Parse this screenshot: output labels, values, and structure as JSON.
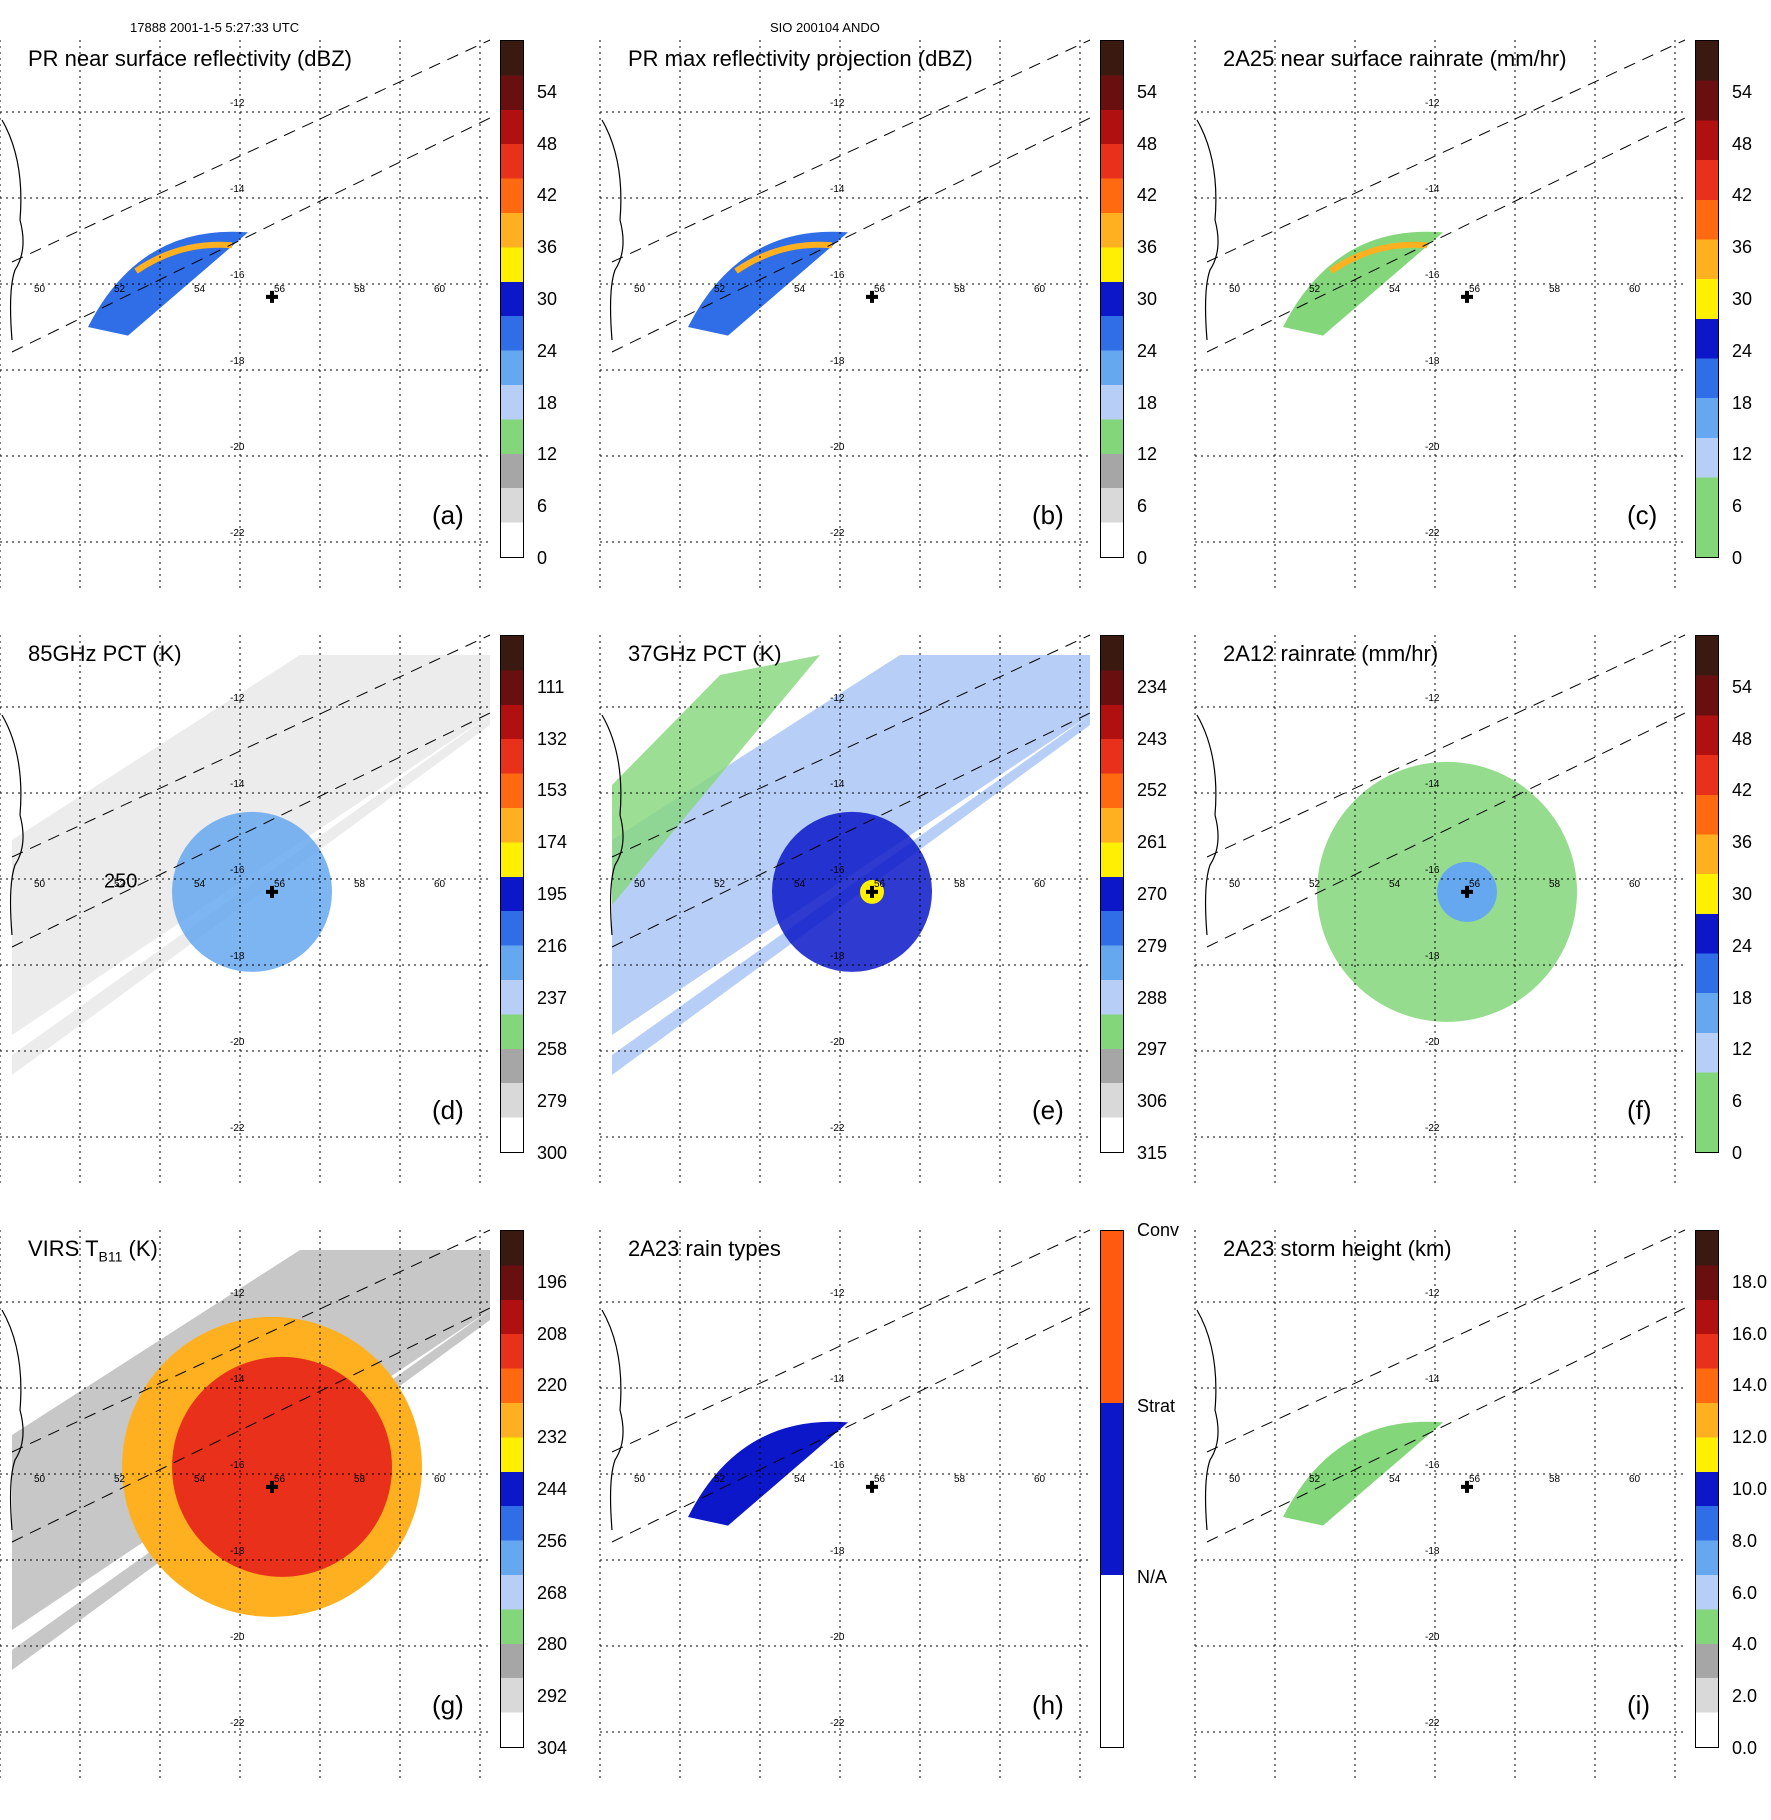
{
  "header": {
    "left": "17888 2001-1-5 5:27:33 UTC",
    "center": "SIO 200104 ANDO"
  },
  "lon_ticks": [
    "50",
    "52",
    "54",
    "56",
    "58",
    "60"
  ],
  "lat_ticks": [
    "-12",
    "-14",
    "-16",
    "-18",
    "-20",
    "-22"
  ],
  "colors": {
    "ring_contour": "#000000",
    "swath_edge": "#000000"
  },
  "panels": [
    {
      "id": "a",
      "title": "PR near surface reflectivity (dBZ)",
      "label": "(a)",
      "type": "pr",
      "colorbar": [
        "#ffffff",
        "#d9d9d9",
        "#a6a6a6",
        "#84d67a",
        "#b7cff7",
        "#66a8f0",
        "#2f6ee6",
        "#0b17c8",
        "#ffef00",
        "#ffb020",
        "#ff6a10",
        "#e8301a",
        "#b01010",
        "#6a0f0f",
        "#3a1a10"
      ],
      "cb_labels": [
        "0",
        "6",
        "12",
        "18",
        "24",
        "30",
        "36",
        "42",
        "48",
        "54"
      ]
    },
    {
      "id": "b",
      "title": "PR max reflectivity projection (dBZ)",
      "label": "(b)",
      "type": "pr",
      "colorbar": [
        "#ffffff",
        "#d9d9d9",
        "#a6a6a6",
        "#84d67a",
        "#b7cff7",
        "#66a8f0",
        "#2f6ee6",
        "#0b17c8",
        "#ffef00",
        "#ffb020",
        "#ff6a10",
        "#e8301a",
        "#b01010",
        "#6a0f0f",
        "#3a1a10"
      ],
      "cb_labels": [
        "0",
        "6",
        "12",
        "18",
        "24",
        "30",
        "36",
        "42",
        "48",
        "54"
      ]
    },
    {
      "id": "c",
      "title": "2A25 near surface rainrate (mm/hr)",
      "label": "(c)",
      "type": "pr",
      "colorbar": [
        "#84d67a",
        "#84d67a",
        "#b7cff7",
        "#66a8f0",
        "#2f6ee6",
        "#0b17c8",
        "#ffef00",
        "#ffb020",
        "#ff6a10",
        "#e8301a",
        "#b01010",
        "#6a0f0f",
        "#3a1a10"
      ],
      "cb_labels": [
        "0",
        "6",
        "12",
        "18",
        "24",
        "30",
        "36",
        "42",
        "48",
        "54"
      ]
    },
    {
      "id": "d",
      "title": "85GHz PCT (K)",
      "label": "(d)",
      "type": "wide",
      "contour": "250",
      "colorbar": [
        "#ffffff",
        "#d9d9d9",
        "#a6a6a6",
        "#84d67a",
        "#b7cff7",
        "#66a8f0",
        "#2f6ee6",
        "#0b17c8",
        "#ffef00",
        "#ffb020",
        "#ff6a10",
        "#e8301a",
        "#b01010",
        "#6a0f0f",
        "#3a1a10"
      ],
      "cb_labels": [
        "300",
        "279",
        "258",
        "237",
        "216",
        "195",
        "174",
        "153",
        "132",
        "111"
      ]
    },
    {
      "id": "e",
      "title": "37GHz PCT (K)",
      "label": "(e)",
      "type": "wide",
      "colorbar": [
        "#ffffff",
        "#d9d9d9",
        "#a6a6a6",
        "#84d67a",
        "#b7cff7",
        "#66a8f0",
        "#2f6ee6",
        "#0b17c8",
        "#ffef00",
        "#ffb020",
        "#ff6a10",
        "#e8301a",
        "#b01010",
        "#6a0f0f",
        "#3a1a10"
      ],
      "cb_labels": [
        "315",
        "306",
        "297",
        "288",
        "279",
        "270",
        "261",
        "252",
        "243",
        "234"
      ]
    },
    {
      "id": "f",
      "title": "2A12 rainrate (mm/hr)",
      "label": "(f)",
      "type": "wide",
      "colorbar": [
        "#84d67a",
        "#84d67a",
        "#b7cff7",
        "#66a8f0",
        "#2f6ee6",
        "#0b17c8",
        "#ffef00",
        "#ffb020",
        "#ff6a10",
        "#e8301a",
        "#b01010",
        "#6a0f0f",
        "#3a1a10"
      ],
      "cb_labels": [
        "0",
        "6",
        "12",
        "18",
        "24",
        "30",
        "36",
        "42",
        "48",
        "54"
      ]
    },
    {
      "id": "g",
      "title": "VIRS T",
      "title_sub": "B11",
      "title_tail": " (K)",
      "label": "(g)",
      "type": "wide",
      "colorbar": [
        "#ffffff",
        "#d9d9d9",
        "#a6a6a6",
        "#84d67a",
        "#b7cff7",
        "#66a8f0",
        "#2f6ee6",
        "#0b17c8",
        "#ffef00",
        "#ffb020",
        "#ff6a10",
        "#e8301a",
        "#b01010",
        "#6a0f0f",
        "#3a1a10"
      ],
      "cb_labels": [
        "304",
        "292",
        "280",
        "268",
        "256",
        "244",
        "232",
        "220",
        "208",
        "196"
      ]
    },
    {
      "id": "h",
      "title": "2A23 rain types",
      "label": "(h)",
      "type": "pr",
      "colorbar": [
        "#ffffff",
        "#0b17c8",
        "#ff5a10"
      ],
      "cb_labels": [
        "N/A",
        "Strat",
        "Conv"
      ]
    },
    {
      "id": "i",
      "title": "2A23 storm height (km)",
      "label": "(i)",
      "type": "pr",
      "colorbar": [
        "#ffffff",
        "#d9d9d9",
        "#a6a6a6",
        "#84d67a",
        "#b7cff7",
        "#66a8f0",
        "#2f6ee6",
        "#0b17c8",
        "#ffef00",
        "#ffb020",
        "#ff6a10",
        "#e8301a",
        "#b01010",
        "#6a0f0f",
        "#3a1a10"
      ],
      "cb_labels": [
        "0.0",
        "2.0",
        "4.0",
        "6.0",
        "8.0",
        "10.0",
        "12.0",
        "14.0",
        "16.0",
        "18.0"
      ]
    }
  ]
}
